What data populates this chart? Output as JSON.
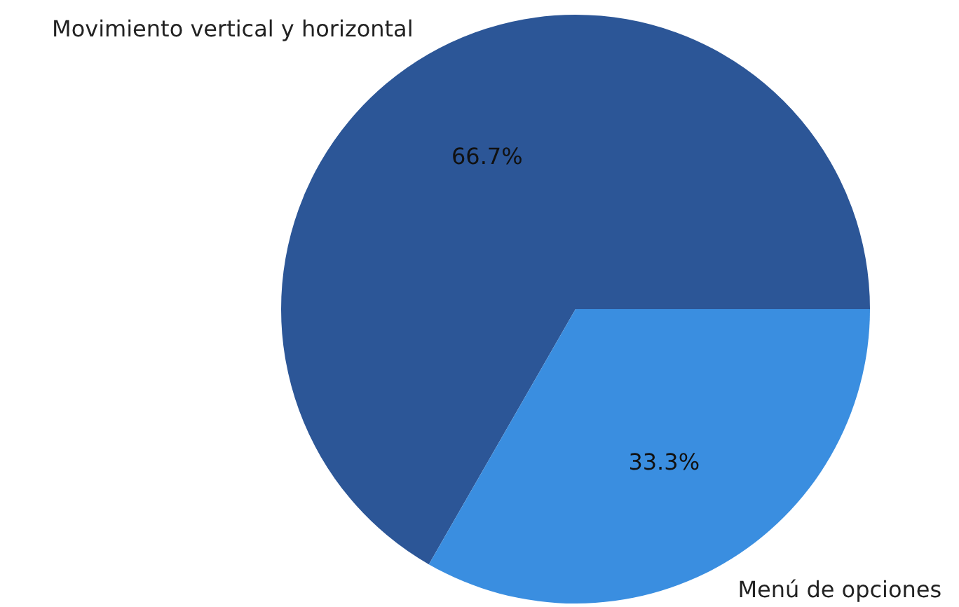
{
  "chart_data": {
    "type": "pie",
    "categories": [
      "Movimiento vertical y horizontal",
      "Menú de opciones"
    ],
    "values": [
      66.7,
      33.3
    ],
    "colors": [
      "#2c5697",
      "#3a8ee0"
    ],
    "value_labels": [
      "66.7%",
      "33.3%"
    ]
  }
}
